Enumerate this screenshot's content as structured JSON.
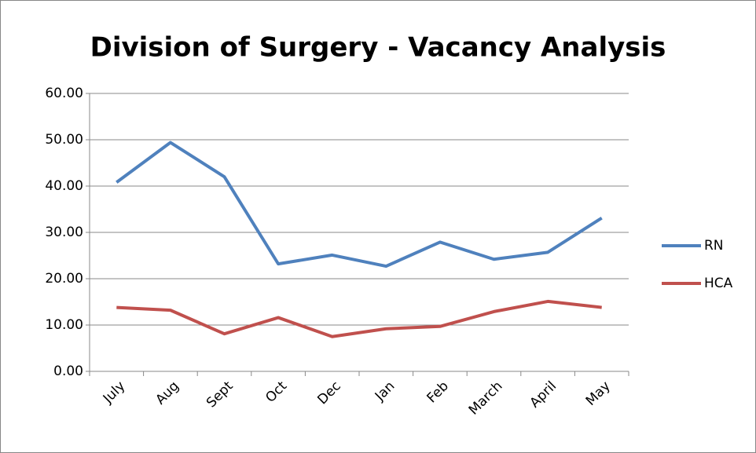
{
  "chart_data": {
    "type": "line",
    "title": "Division of Surgery - Vacancy Analysis",
    "categories": [
      "July",
      "Aug",
      "Sept",
      "Oct",
      "Dec",
      "Jan",
      "Feb",
      "March",
      "April",
      "May"
    ],
    "series": [
      {
        "name": "RN",
        "color": "#4f81bd",
        "values": [
          40.8,
          49.4,
          42.0,
          23.2,
          25.1,
          22.7,
          27.9,
          24.2,
          25.7,
          33.1
        ]
      },
      {
        "name": "HCA",
        "color": "#c0504d",
        "values": [
          13.8,
          13.2,
          8.1,
          11.6,
          7.5,
          9.2,
          9.7,
          12.9,
          15.1,
          13.8
        ]
      }
    ],
    "ylim": [
      0,
      60
    ],
    "yticks": [
      {
        "value": 0,
        "label": "0.00"
      },
      {
        "value": 10,
        "label": "10.00"
      },
      {
        "value": 20,
        "label": "20.00"
      },
      {
        "value": 30,
        "label": "30.00"
      },
      {
        "value": 40,
        "label": "40.00"
      },
      {
        "value": 50,
        "label": "50.00"
      },
      {
        "value": 60,
        "label": "60.00"
      }
    ],
    "grid": true,
    "legend": "right"
  }
}
